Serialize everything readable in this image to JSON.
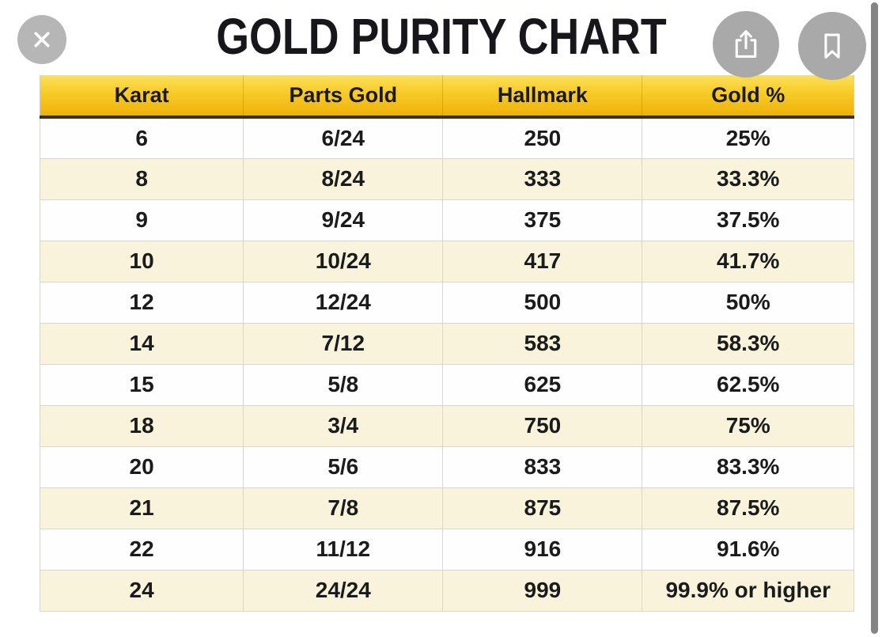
{
  "viewer": {
    "close_label": "close",
    "share_label": "share",
    "bookmark_label": "bookmark"
  },
  "chart_data": {
    "type": "table",
    "title": "GOLD PURITY CHART",
    "columns": [
      "Karat",
      "Parts Gold",
      "Hallmark",
      "Gold %"
    ],
    "rows": [
      [
        "6",
        "6/24",
        "250",
        "25%"
      ],
      [
        "8",
        "8/24",
        "333",
        "33.3%"
      ],
      [
        "9",
        "9/24",
        "375",
        "37.5%"
      ],
      [
        "10",
        "10/24",
        "417",
        "41.7%"
      ],
      [
        "12",
        "12/24",
        "500",
        "50%"
      ],
      [
        "14",
        "7/12",
        "583",
        "58.3%"
      ],
      [
        "15",
        "5/8",
        "625",
        "62.5%"
      ],
      [
        "18",
        "3/4",
        "750",
        "75%"
      ],
      [
        "20",
        "5/6",
        "833",
        "83.3%"
      ],
      [
        "21",
        "7/8",
        "875",
        "87.5%"
      ],
      [
        "22",
        "11/12",
        "916",
        "91.6%"
      ],
      [
        "24",
        "24/24",
        "999",
        "99.9% or higher"
      ]
    ],
    "layout": {
      "row_striping": "alternating starting white",
      "header_position": "top"
    },
    "colors": {
      "header_gradient_top": "#fce05c",
      "header_gradient_bottom": "#efb108",
      "header_underline": "#3b3318",
      "row_white": "#fefefe",
      "row_cream": "#faf3dc",
      "cell_border": "#d9d6cc",
      "text": "#1b1b1b",
      "button_gray": "#a9a9a9",
      "scrollbar_gray": "#858585"
    }
  }
}
